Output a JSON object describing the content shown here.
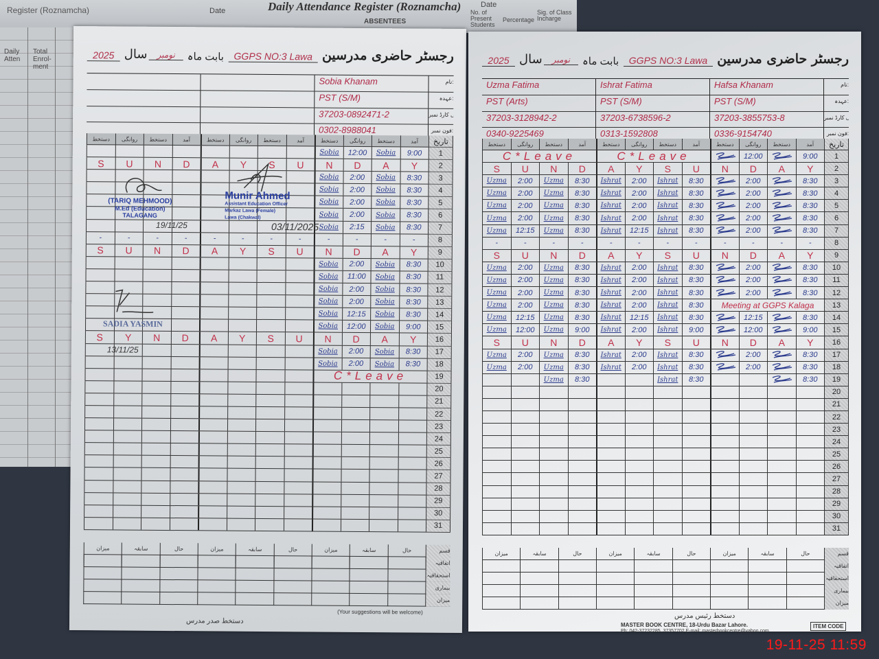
{
  "background_register": {
    "title": "Daily Attendance Register (Roznamcha)",
    "title_left": "Register (Roznamcha)",
    "date_label": "Date",
    "absentees": "ABSENTEES",
    "present": "No. of Present Students",
    "percentage": "Percentage",
    "sig": "Sig. of Class Incharge",
    "total_enrolment": "Total Enrol-ment",
    "left_label": "Daily Atten"
  },
  "header": {
    "title": "رجسٹر حاضری مدرسین",
    "school": "GGPS NO:3 Lawa",
    "month_label": "بابت ماہ",
    "month": "نومبر",
    "year_label": "سال",
    "year": "2025"
  },
  "info_labels": [
    "نام:",
    "عہدہ:",
    "قومی شناختی کارڈ نمبر:",
    "فون نمبر:"
  ],
  "column_headers": [
    "دستخط",
    "روانگی",
    "دستخط",
    "آمد"
  ],
  "date_header": "تاریخ",
  "summary": {
    "col_headers": [
      "میزان",
      "سابقہ",
      "حال"
    ],
    "row_labels": [
      "قسم رخصت",
      "اتفاقیہ",
      "استحقاقیہ",
      "بیماری",
      "میزان"
    ]
  },
  "left_page": {
    "teachers": [
      {
        "name": "",
        "designation": "",
        "cnic": "",
        "phone": ""
      },
      {
        "name": "",
        "designation": "",
        "cnic": "",
        "phone": ""
      },
      {
        "name": "Sobia Khanam",
        "designation": "PST (S/M)",
        "cnic": "37203-0892471-2",
        "phone": "0302-8988041"
      }
    ],
    "rows": [
      {
        "date": "1",
        "blocks": [
          [],
          [],
          [
            "Sobia",
            "12:00",
            "Sobia",
            "9:00"
          ]
        ]
      },
      {
        "date": "2",
        "sunday": [
          "S",
          "U",
          "N",
          "D",
          "A",
          "Y",
          "S",
          "U",
          "N",
          "D",
          "A",
          "Y"
        ]
      },
      {
        "date": "3",
        "check": true,
        "blocks": [
          [],
          [],
          [
            "Sobia",
            "2:00",
            "Sobia",
            "8:30"
          ]
        ]
      },
      {
        "date": "4",
        "blocks": [
          [],
          [],
          [
            "Sobia",
            "2:00",
            "Sobia",
            "8:30"
          ]
        ]
      },
      {
        "date": "5",
        "blocks": [
          [],
          [],
          [
            "Sobia",
            "2:00",
            "Sobia",
            "8:30"
          ]
        ]
      },
      {
        "date": "6",
        "blocks": [
          [],
          [],
          [
            "Sobia",
            "2:00",
            "Sobia",
            "8:30"
          ]
        ]
      },
      {
        "date": "7",
        "blocks": [
          [],
          [],
          [
            "Sobia",
            "2:15",
            "Sobia",
            "8:30"
          ]
        ]
      },
      {
        "date": "8",
        "blocks": [
          [
            "-",
            "-",
            "-",
            "-"
          ],
          [
            "-",
            "-",
            "-",
            "-"
          ],
          [
            "-",
            "-",
            "-",
            "-"
          ]
        ]
      },
      {
        "date": "9",
        "sunday": [
          "S",
          "U",
          "N",
          "D",
          "A",
          "Y",
          "S",
          "U",
          "N",
          "D",
          "A",
          "Y"
        ]
      },
      {
        "date": "10",
        "blocks": [
          [],
          [],
          [
            "Sobia",
            "2:00",
            "Sobia",
            "8:30"
          ]
        ]
      },
      {
        "date": "11",
        "blocks": [
          [],
          [],
          [
            "Sobia",
            "11:00",
            "Sobia",
            "8:30"
          ]
        ]
      },
      {
        "date": "12",
        "blocks": [
          [],
          [],
          [
            "Sobia",
            "2:00",
            "Sobia",
            "8:30"
          ]
        ]
      },
      {
        "date": "13",
        "check": true,
        "blocks": [
          [],
          [],
          [
            "Sobia",
            "2:00",
            "Sobia",
            "8:30"
          ]
        ]
      },
      {
        "date": "14",
        "blocks": [
          [],
          [],
          [
            "Sobia",
            "12:15",
            "Sobia",
            "8:30"
          ]
        ]
      },
      {
        "date": "15",
        "blocks": [
          [],
          [],
          [
            "Sobia",
            "12:00",
            "Sobia",
            "9:00"
          ]
        ]
      },
      {
        "date": "16",
        "sunday": [
          "S",
          "Y",
          "N",
          "D",
          "A",
          "Y",
          "S",
          "U",
          "N",
          "D",
          "A",
          "Y"
        ]
      },
      {
        "date": "17",
        "blocks": [
          [],
          [],
          [
            "Sobia",
            "2:00",
            "Sobia",
            "8:30"
          ]
        ]
      },
      {
        "date": "18",
        "blocks": [
          [],
          [],
          [
            "Sobia",
            "2:00",
            "Sobia",
            "8:30"
          ]
        ]
      },
      {
        "date": "19",
        "blocks": [
          [],
          [],
          {
            "note": "C*Leave"
          }
        ]
      },
      {
        "date": "20"
      },
      {
        "date": "21"
      },
      {
        "date": "22"
      },
      {
        "date": "23"
      },
      {
        "date": "24"
      },
      {
        "date": "25"
      },
      {
        "date": "26"
      },
      {
        "date": "27"
      },
      {
        "date": "28"
      },
      {
        "date": "29"
      },
      {
        "date": "30"
      },
      {
        "date": "31"
      }
    ],
    "footer_note": "(Your suggestions will be welcome)",
    "footer_sign": "دستخط صدر مدرس"
  },
  "right_page": {
    "teachers": [
      {
        "name": "Uzma Fatima",
        "designation": "PST (Arts)",
        "cnic": "37203-3128942-2",
        "phone": "0340-9225469"
      },
      {
        "name": "Ishrat Fatima",
        "designation": "PST (S/M)",
        "cnic": "37203-6738596-2",
        "phone": "0313-1592808"
      },
      {
        "name": "Hafsa Khanam",
        "designation": "PST (S/M)",
        "cnic": "37203-3855753-8",
        "phone": "0336-9154740",
        "scribble_signature": true
      }
    ],
    "rows": [
      {
        "date": "1",
        "blocks": [
          {
            "note": "C*Leave"
          },
          {
            "note": "C*Leave"
          },
          [
            "",
            "12:00",
            "",
            "9:00"
          ]
        ]
      },
      {
        "date": "2",
        "sunday": [
          "S",
          "U",
          "N",
          "D",
          "A",
          "Y",
          "S",
          "U",
          "N",
          "D",
          "A",
          "Y"
        ]
      },
      {
        "date": "3",
        "check": true,
        "blocks": [
          [
            "Uzma",
            "2:00",
            "Uzma",
            "8:30"
          ],
          [
            "Ishrat",
            "2:00",
            "Ishrat",
            "8:30"
          ],
          [
            "",
            "2:00",
            "",
            "8:30"
          ]
        ]
      },
      {
        "date": "4",
        "blocks": [
          [
            "Uzma",
            "2:00",
            "Uzma",
            "8:30"
          ],
          [
            "Ishrat",
            "2:00",
            "Ishrat",
            "8:30"
          ],
          [
            "",
            "2:00",
            "",
            "8:30"
          ]
        ]
      },
      {
        "date": "5",
        "blocks": [
          [
            "Uzma",
            "2:00",
            "Uzma",
            "8:30"
          ],
          [
            "Ishrat",
            "2:00",
            "Ishrat",
            "8:30"
          ],
          [
            "",
            "2:00",
            "",
            "8:30"
          ]
        ]
      },
      {
        "date": "6",
        "blocks": [
          [
            "Uzma",
            "2:00",
            "Uzma",
            "8:30"
          ],
          [
            "Ishrat",
            "2:00",
            "Ishrat",
            "8:30"
          ],
          [
            "",
            "2:00",
            "",
            "8:30"
          ]
        ]
      },
      {
        "date": "7",
        "blocks": [
          [
            "Uzma",
            "12:15",
            "Uzma",
            "8:30"
          ],
          [
            "Ishrat",
            "12:15",
            "Ishrat",
            "8:30"
          ],
          [
            "",
            "2:00",
            "",
            "8:30"
          ]
        ]
      },
      {
        "date": "8",
        "blocks": [
          [
            "-",
            "-",
            "-",
            "-"
          ],
          [
            "-",
            "-",
            "-",
            "-"
          ],
          [
            "-",
            "-",
            "-",
            "-"
          ]
        ]
      },
      {
        "date": "9",
        "sunday": [
          "S",
          "U",
          "N",
          "D",
          "A",
          "Y",
          "S",
          "U",
          "N",
          "D",
          "A",
          "Y"
        ]
      },
      {
        "date": "10",
        "blocks": [
          [
            "Uzma",
            "2:00",
            "Uzma",
            "8:30"
          ],
          [
            "Ishrat",
            "2:00",
            "Ishrat",
            "8:30"
          ],
          [
            "",
            "2:00",
            "",
            "8:30"
          ]
        ]
      },
      {
        "date": "11",
        "blocks": [
          [
            "Uzma",
            "2:00",
            "Uzma",
            "8:30"
          ],
          [
            "Ishrat",
            "2:00",
            "Ishrat",
            "8:30"
          ],
          [
            "",
            "2:00",
            "",
            "8:30"
          ]
        ]
      },
      {
        "date": "12",
        "blocks": [
          [
            "Uzma",
            "2:00",
            "Uzma",
            "8:30"
          ],
          [
            "Ishrat",
            "2:00",
            "Ishrat",
            "8:30"
          ],
          [
            "",
            "2:00",
            "",
            "8:30"
          ]
        ]
      },
      {
        "date": "13",
        "blocks": [
          [
            "Uzma",
            "2:00",
            "Uzma",
            "8:30"
          ],
          [
            "Ishrat",
            "2:00",
            "Ishrat",
            "8:30"
          ],
          {
            "note": "Meeting at GGPS Kalaga"
          }
        ]
      },
      {
        "date": "14",
        "blocks": [
          [
            "Uzma",
            "12:15",
            "Uzma",
            "8:30"
          ],
          [
            "Ishrat",
            "12:15",
            "Ishrat",
            "8:30"
          ],
          [
            "",
            "12:15",
            "",
            "8:30"
          ]
        ]
      },
      {
        "date": "15",
        "blocks": [
          [
            "Uzma",
            "12:00",
            "Uzma",
            "9:00"
          ],
          [
            "Ishrat",
            "2:00",
            "Ishrat",
            "9:00"
          ],
          [
            "",
            "12:00",
            "",
            "9:00"
          ]
        ]
      },
      {
        "date": "16",
        "sunday": [
          "S",
          "U",
          "N",
          "D",
          "A",
          "Y",
          "S",
          "U",
          "N",
          "D",
          "A",
          "Y"
        ]
      },
      {
        "date": "17",
        "blocks": [
          [
            "Uzma",
            "2:00",
            "Uzma",
            "8:30"
          ],
          [
            "Ishrat",
            "2:00",
            "Ishrat",
            "8:30"
          ],
          [
            "",
            "2:00",
            "",
            "8:30"
          ]
        ]
      },
      {
        "date": "18",
        "blocks": [
          [
            "Uzma",
            "2:00",
            "Uzma",
            "8:30"
          ],
          [
            "Ishrat",
            "2:00",
            "Ishrat",
            "8:30"
          ],
          [
            "",
            "2:00",
            "",
            "8:30"
          ]
        ]
      },
      {
        "date": "19",
        "blocks": [
          [
            "",
            "",
            "Uzma",
            "8:30"
          ],
          [
            "",
            "",
            "Ishrat",
            "8:30"
          ],
          [
            "",
            "",
            "",
            "8:30"
          ]
        ]
      },
      {
        "date": "20"
      },
      {
        "date": "21"
      },
      {
        "date": "22"
      },
      {
        "date": "23"
      },
      {
        "date": "24"
      },
      {
        "date": "25"
      },
      {
        "date": "26"
      },
      {
        "date": "27"
      },
      {
        "date": "28"
      },
      {
        "date": "29"
      },
      {
        "date": "30"
      },
      {
        "date": "31"
      }
    ],
    "footer_sign": "دستخط رئیس مدرس",
    "printer": "MASTER BOOK CENTRE, 18-Urdu Bazar Lahore.",
    "printer_contact": "Ph: 042-37232285, 37357702 E-mail: masterbookcentre@yahoo.com",
    "item_code": "ITEM CODE"
  },
  "stamps": {
    "tariq": {
      "name": "(TARIQ MEHMOOD)",
      "qual": "M.Ed (Education)",
      "place": "TALAGANG",
      "date": "19/11/25"
    },
    "munir": {
      "name": "Munir Ahmed",
      "title": "Assistant Education Officer",
      "markaz": "Markaz Lawa (Female)",
      "place": "Lawa (Chakwal)",
      "date": "03/11/2025"
    },
    "sadia": {
      "name": "SADIA YASMIN",
      "date": "13/11/25"
    }
  },
  "timestamp": "19-11-25  11:59",
  "colors": {
    "ink_red": "#c0304a",
    "ink_blue": "#2a3a8c",
    "stamp_blue": "#2a3fa0",
    "timestamp": "#ff1a1a"
  }
}
